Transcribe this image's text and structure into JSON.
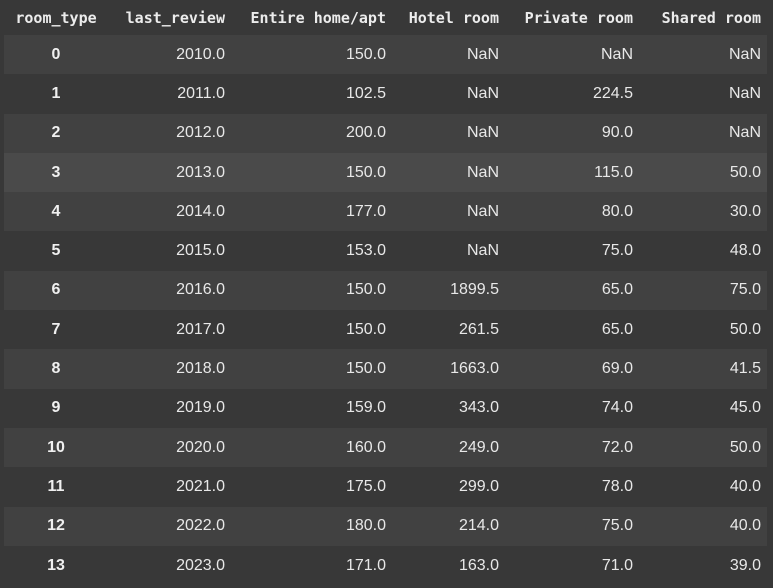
{
  "table": {
    "columns": [
      "room_type",
      "last_review",
      "Entire home/apt",
      "Hotel room",
      "Private room",
      "Shared room"
    ],
    "rows": [
      [
        "0",
        "2010.0",
        "150.0",
        "NaN",
        "NaN",
        "NaN"
      ],
      [
        "1",
        "2011.0",
        "102.5",
        "NaN",
        "224.5",
        "NaN"
      ],
      [
        "2",
        "2012.0",
        "200.0",
        "NaN",
        "90.0",
        "NaN"
      ],
      [
        "3",
        "2013.0",
        "150.0",
        "NaN",
        "115.0",
        "50.0"
      ],
      [
        "4",
        "2014.0",
        "177.0",
        "NaN",
        "80.0",
        "30.0"
      ],
      [
        "5",
        "2015.0",
        "153.0",
        "NaN",
        "75.0",
        "48.0"
      ],
      [
        "6",
        "2016.0",
        "150.0",
        "1899.5",
        "65.0",
        "75.0"
      ],
      [
        "7",
        "2017.0",
        "150.0",
        "261.5",
        "65.0",
        "50.0"
      ],
      [
        "8",
        "2018.0",
        "150.0",
        "1663.0",
        "69.0",
        "41.5"
      ],
      [
        "9",
        "2019.0",
        "159.0",
        "343.0",
        "74.0",
        "45.0"
      ],
      [
        "10",
        "2020.0",
        "160.0",
        "249.0",
        "72.0",
        "50.0"
      ],
      [
        "11",
        "2021.0",
        "175.0",
        "299.0",
        "78.0",
        "40.0"
      ],
      [
        "12",
        "2022.0",
        "180.0",
        "214.0",
        "75.0",
        "40.0"
      ],
      [
        "13",
        "2023.0",
        "171.0",
        "163.0",
        "71.0",
        "39.0"
      ]
    ],
    "colors": {
      "background": "#383838",
      "row_odd": "#414141",
      "row_highlight": "#4a4a4a",
      "text": "#e8e8e8"
    }
  }
}
